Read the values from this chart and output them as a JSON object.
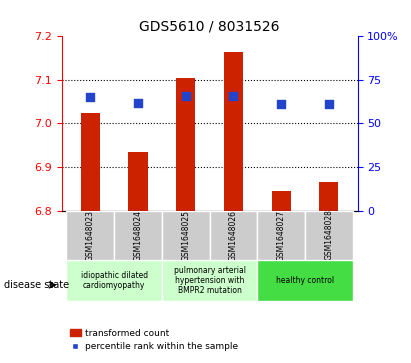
{
  "title": "GDS5610 / 8031526",
  "samples": [
    "GSM1648023",
    "GSM1648024",
    "GSM1648025",
    "GSM1648026",
    "GSM1648027",
    "GSM1648028"
  ],
  "transformed_count": [
    7.025,
    6.935,
    7.105,
    7.165,
    6.845,
    6.865
  ],
  "bar_bottom": 6.8,
  "percentile_rank": [
    65,
    62,
    66,
    66,
    61,
    61
  ],
  "ylim_left": [
    6.8,
    7.2
  ],
  "ylim_right": [
    0,
    100
  ],
  "yticks_left": [
    6.8,
    6.9,
    7.0,
    7.1,
    7.2
  ],
  "yticks_right": [
    0,
    25,
    50,
    75,
    100
  ],
  "ytick_labels_right": [
    "0",
    "25",
    "50",
    "75",
    "100%"
  ],
  "bar_color": "#cc2200",
  "dot_color": "#2244cc",
  "grid_color": "#000000",
  "bg_color": "#ffffff",
  "tick_area_color": "#cccccc",
  "disease_groups": [
    {
      "label": "idiopathic dilated\ncardiomyopathy",
      "start": 0,
      "end": 2,
      "color": "#ccffcc"
    },
    {
      "label": "pulmonary arterial\nhypertension with\nBMPR2 mutation",
      "start": 2,
      "end": 4,
      "color": "#ccffcc"
    },
    {
      "label": "healthy control",
      "start": 4,
      "end": 6,
      "color": "#44dd44"
    }
  ],
  "legend_bar_label": "transformed count",
  "legend_dot_label": "percentile rank within the sample",
  "disease_state_label": "disease state",
  "bar_width": 0.4,
  "dot_size": 40
}
